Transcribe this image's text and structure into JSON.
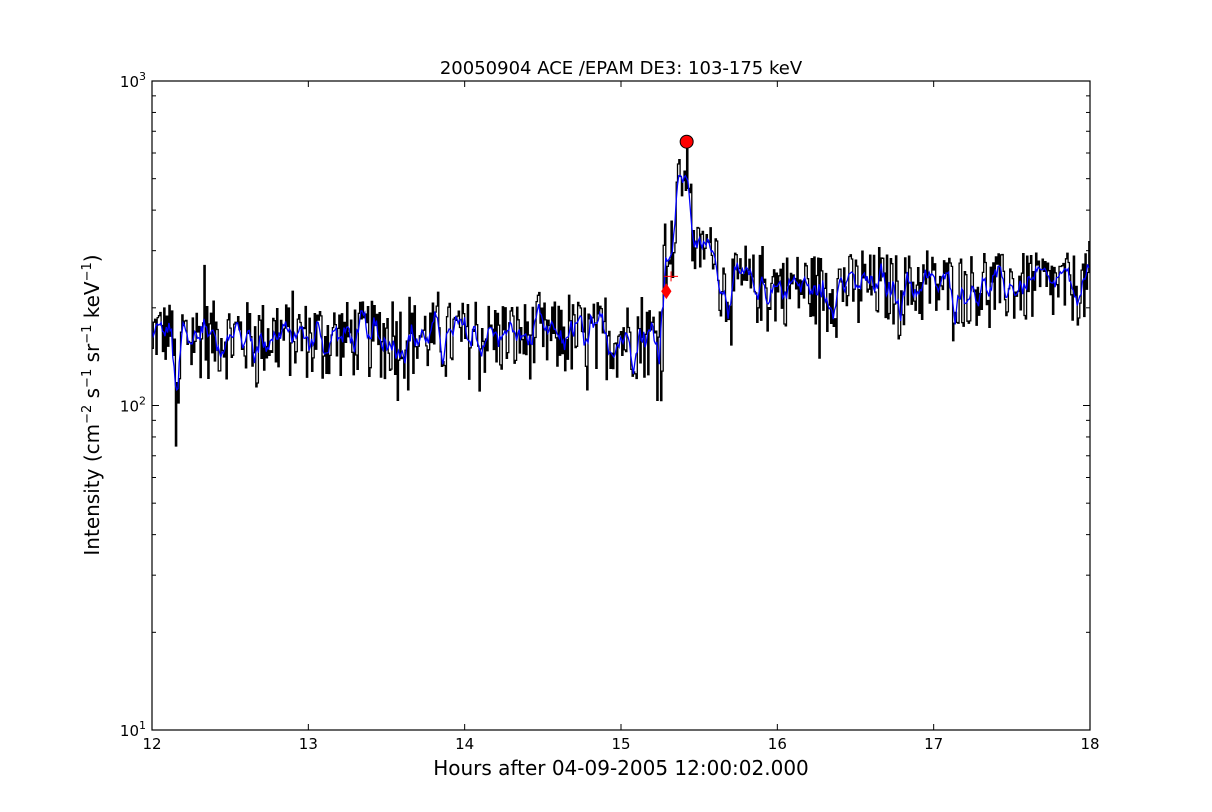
{
  "chart_data": {
    "type": "line",
    "title": "20050904 ACE /EPAM DE3: 103-175 keV",
    "xlabel": "Hours after 04-09-2005 12:00:02.000",
    "ylabel_parts": {
      "base": "Intensity (cm",
      "e1": "−2",
      "s": " s",
      "e2": "−1",
      "sr": " sr",
      "e3": "−1",
      "kev": " keV",
      "e4": "−1",
      "close": ")"
    },
    "xlim": [
      12,
      18
    ],
    "ylim": [
      10,
      1000
    ],
    "yscale": "log",
    "grid": false,
    "x_ticks": [
      12,
      13,
      14,
      15,
      16,
      17,
      18
    ],
    "x_tick_labels": [
      "12",
      "13",
      "14",
      "15",
      "16",
      "17",
      "18"
    ],
    "y_major_ticks": [
      10,
      100,
      1000
    ],
    "y_tick_labels": [
      {
        "base": "10",
        "exp": "1"
      },
      {
        "base": "10",
        "exp": "2"
      },
      {
        "base": "10",
        "exp": "3"
      }
    ],
    "series": [
      {
        "style": "step",
        "color": "#000000",
        "x_start": 12.0,
        "x_step": 0.0083,
        "segments": [
          {
            "x0": 12.0,
            "x1": 12.15,
            "mean": 170,
            "amp": 40
          },
          {
            "x0": 12.15,
            "x1": 12.18,
            "mean": 105,
            "amp": 25
          },
          {
            "x0": 12.18,
            "x1": 15.27,
            "mean": 165,
            "amp": 45
          },
          {
            "x0": 15.27,
            "x1": 15.35,
            "mean": 320,
            "amp": 60
          },
          {
            "x0": 15.35,
            "x1": 15.45,
            "mean": 500,
            "amp": 80
          },
          {
            "x0": 15.45,
            "x1": 15.62,
            "mean": 310,
            "amp": 50
          },
          {
            "x0": 15.62,
            "x1": 18.0,
            "mean": 235,
            "amp": 60
          }
        ]
      },
      {
        "style": "line",
        "color": "#0000ff",
        "smoothed": true
      }
    ],
    "markers": [
      {
        "label": "onset",
        "shape": "diamond",
        "color": "#ff0000",
        "x": 15.29,
        "y": 225
      },
      {
        "label": "peak",
        "shape": "circle",
        "color": "#ff0000",
        "x": 15.42,
        "y": 650
      },
      {
        "label": "reference",
        "shape": "plus",
        "color": "#ff0000",
        "x": 15.32,
        "y": 250
      }
    ],
    "anchors": [
      {
        "x": 12.0,
        "y": 150
      },
      {
        "x": 12.15,
        "y": 75
      },
      {
        "x": 12.33,
        "y": 270
      },
      {
        "x": 15.29,
        "y": 225
      },
      {
        "x": 15.42,
        "y": 620
      },
      {
        "x": 16.27,
        "y": 140
      },
      {
        "x": 18.0,
        "y": 320
      }
    ]
  }
}
